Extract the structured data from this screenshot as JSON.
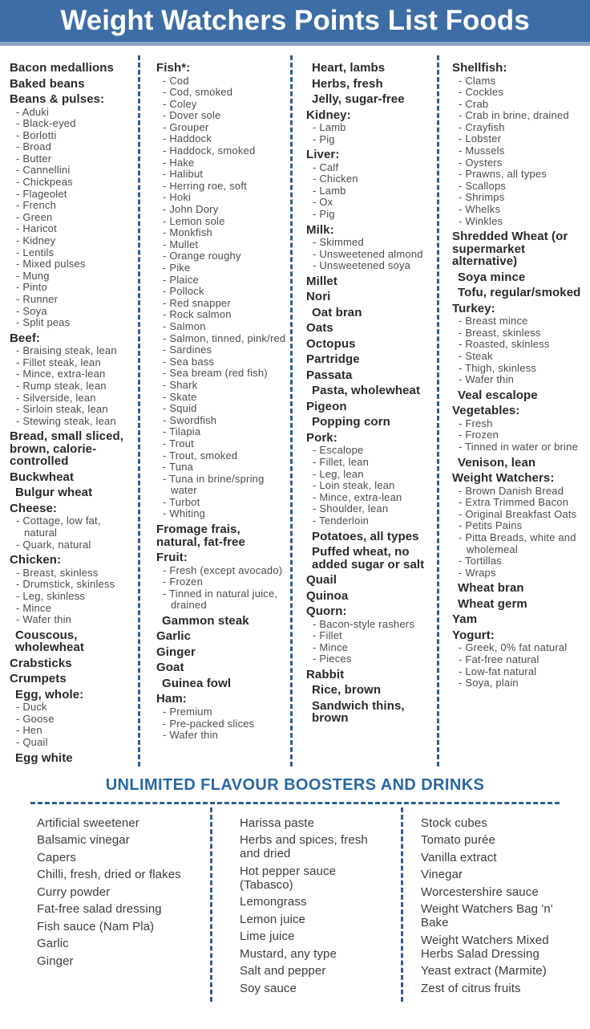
{
  "colors": {
    "header_bg": "#3e6da5",
    "header_underline": "#8aa6c5",
    "header_text": "#ffffff",
    "section_title_blue": "#2b67a5",
    "divider_blue": "#2d5f93",
    "group_title_text": "#29292d",
    "item_text": "#4b4b51",
    "booster_text": "#3c3c41"
  },
  "header": {
    "title": "Weight Watchers Points List Foods"
  },
  "food_columns": [
    {
      "groups": [
        {
          "title": "Bacon medallions"
        },
        {
          "title": "Baked beans"
        },
        {
          "title": "Beans & pulses:",
          "items": [
            "Aduki",
            "Black-eyed",
            "Borlotti",
            "Broad",
            "Butter",
            "Cannellini",
            "Chickpeas",
            "Flageolet",
            "French",
            "Green",
            "Haricot",
            "Kidney",
            "Lentils",
            "Mixed pulses",
            "Mung",
            "Pinto",
            "Runner",
            "Soya",
            "Split peas"
          ]
        },
        {
          "title": "Beef:",
          "items": [
            "Braising steak, lean",
            "Fillet steak, lean",
            "Mince, extra-lean",
            "Rump steak, lean",
            "Silverside, lean",
            "Sirloin steak, lean",
            "Stewing steak, lean"
          ]
        },
        {
          "title": "Bread, small sliced, brown, calorie-controlled"
        },
        {
          "title": "Buckwheat"
        },
        {
          "title": "Bulgur wheat",
          "indent": true
        },
        {
          "title": "Cheese:",
          "items": [
            "Cottage, low fat, natural",
            "Quark, natural"
          ]
        },
        {
          "title": "Chicken:",
          "items": [
            "Breast, skinless",
            "Drumstick, skinless",
            "Leg, skinless",
            "Mince",
            "Wafer thin"
          ]
        },
        {
          "title": "Couscous, wholewheat",
          "indent": true
        },
        {
          "title": "Crabsticks"
        },
        {
          "title": "Crumpets"
        },
        {
          "title": "Egg, whole:",
          "indent": true,
          "items": [
            "Duck",
            "Goose",
            "Hen",
            "Quail"
          ]
        },
        {
          "title": "Egg white",
          "indent": true
        }
      ]
    },
    {
      "groups": [
        {
          "title": "Fish*:",
          "items": [
            "Cod",
            "Cod, smoked",
            "Coley",
            "Dover sole",
            "Grouper",
            "Haddock",
            "Haddock, smoked",
            "Hake",
            "Halibut",
            "Herring roe, soft",
            "Hoki",
            "John Dory",
            "Lemon sole",
            "Monkfish",
            "Mullet",
            "Orange roughy",
            "Pike",
            "Plaice",
            "Pollock",
            "Red snapper",
            "Rock salmon",
            "Salmon",
            "Salmon, tinned, pink/red",
            "Sardines",
            "Sea bass",
            "Sea bream (red fish)",
            "Shark",
            "Skate",
            "Squid",
            "Swordfish",
            "Tilapia",
            "Trout",
            "Trout, smoked",
            "Tuna",
            "Tuna in brine/spring water",
            "Turbot",
            "Whiting"
          ]
        },
        {
          "title": "Fromage frais, natural, fat-free"
        },
        {
          "title": "Fruit:",
          "items": [
            "Fresh (except avocado)",
            "Frozen",
            "Tinned in natural juice, drained"
          ]
        },
        {
          "title": "Gammon steak",
          "indent": true
        },
        {
          "title": "Garlic"
        },
        {
          "title": "Ginger"
        },
        {
          "title": "Goat"
        },
        {
          "title": "Guinea fowl",
          "indent": true
        },
        {
          "title": "Ham:",
          "items": [
            "Premium",
            "Pre-packed slices",
            "Wafer thin"
          ]
        }
      ]
    },
    {
      "groups": [
        {
          "title": "Heart, lambs",
          "indent": true
        },
        {
          "title": "Herbs, fresh",
          "indent": true
        },
        {
          "title": "Jelly, sugar-free",
          "indent": true
        },
        {
          "title": "Kidney:",
          "items": [
            "Lamb",
            "Pig"
          ]
        },
        {
          "title": "Liver:",
          "items": [
            "Calf",
            "Chicken",
            "Lamb",
            "Ox",
            "Pig"
          ]
        },
        {
          "title": "Milk:",
          "items": [
            "Skimmed",
            "Unsweetened almond",
            "Unsweetened soya"
          ]
        },
        {
          "title": "Millet"
        },
        {
          "title": "Nori"
        },
        {
          "title": "Oat bran",
          "indent": true
        },
        {
          "title": "Oats"
        },
        {
          "title": "Octopus"
        },
        {
          "title": "Partridge"
        },
        {
          "title": "Passata"
        },
        {
          "title": "Pasta, wholewheat",
          "indent": true
        },
        {
          "title": "Pigeon"
        },
        {
          "title": "Popping corn",
          "indent": true
        },
        {
          "title": "Pork:",
          "items": [
            "Escalope",
            "Fillet, lean",
            "Leg, lean",
            "Loin steak, lean",
            "Mince, extra-lean",
            "Shoulder, lean",
            "Tenderloin"
          ]
        },
        {
          "title": "Potatoes, all types",
          "indent": true
        },
        {
          "title": "Puffed wheat, no added sugar or salt",
          "indent": true
        },
        {
          "title": "Quail"
        },
        {
          "title": "Quinoa"
        },
        {
          "title": "Quorn:",
          "items": [
            "Bacon-style rashers",
            "Fillet",
            "Mince",
            "Pieces"
          ]
        },
        {
          "title": "Rabbit"
        },
        {
          "title": "Rice, brown",
          "indent": true
        },
        {
          "title": "Sandwich thins, brown",
          "indent": true
        }
      ]
    },
    {
      "groups": [
        {
          "title": "Shellfish:",
          "items": [
            "Clams",
            "Cockles",
            "Crab",
            "Crab in brine, drained",
            "Crayfish",
            "Lobster",
            "Mussels",
            "Oysters",
            "Prawns, all types",
            "Scallops",
            "Shrimps",
            "Whelks",
            "Winkles"
          ]
        },
        {
          "title": "Shredded Wheat (or supermarket alternative)"
        },
        {
          "title": "Soya mince",
          "indent": true
        },
        {
          "title": "Tofu, regular/smoked",
          "indent": true
        },
        {
          "title": "Turkey:",
          "items": [
            "Breast mince",
            "Breast, skinless",
            "Roasted, skinless",
            "Steak",
            "Thigh, skinless",
            "Wafer thin"
          ]
        },
        {
          "title": "Veal escalope",
          "indent": true
        },
        {
          "title": "Vegetables:",
          "items": [
            "Fresh",
            "Frozen",
            "Tinned in water or brine"
          ]
        },
        {
          "title": "Venison, lean",
          "indent": true
        },
        {
          "title": "Weight Watchers:",
          "items": [
            "Brown Danish Bread",
            "Extra Trimmed Bacon",
            "Original Breakfast Oats",
            "Petits Pains",
            "Pitta Breads, white and wholemeal",
            "Tortillas",
            "Wraps"
          ]
        },
        {
          "title": "Wheat bran",
          "indent": true
        },
        {
          "title": "Wheat germ",
          "indent": true
        },
        {
          "title": "Yam"
        },
        {
          "title": "Yogurt:",
          "items": [
            "Greek, 0% fat natural",
            "Fat-free natural",
            "Low-fat natural",
            "Soya, plain"
          ]
        }
      ]
    }
  ],
  "boosters": {
    "title": "UNLIMITED FLAVOUR BOOSTERS AND DRINKS",
    "columns": [
      [
        "Artificial sweetener",
        "Balsamic vinegar",
        "Capers",
        "Chilli, fresh, dried or flakes",
        "Curry powder",
        "Fat-free salad dressing",
        "Fish sauce (Nam Pla)",
        "Garlic",
        "Ginger"
      ],
      [
        "Harissa paste",
        "Herbs and spices, fresh and dried",
        "Hot pepper sauce (Tabasco)",
        "Lemongrass",
        "Lemon juice",
        "Lime juice",
        "Mustard, any type",
        "Salt and pepper",
        "Soy sauce"
      ],
      [
        "Stock cubes",
        "Tomato purée",
        "Vanilla extract",
        "Vinegar",
        "Worcestershire sauce",
        "Weight Watchers Bag 'n' Bake",
        "Weight Watchers Mixed Herbs Salad Dressing",
        "Yeast extract (Marmite)",
        "Zest of citrus fruits"
      ]
    ]
  }
}
